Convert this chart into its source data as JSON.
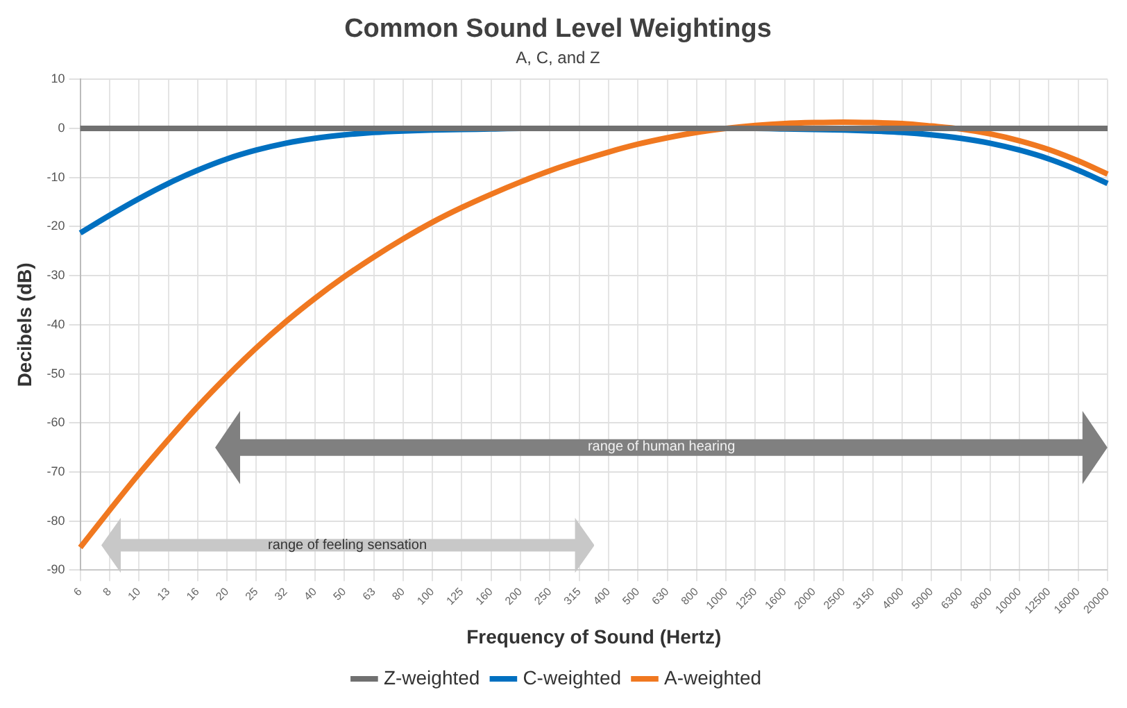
{
  "chart_data": {
    "type": "line",
    "title": "Common Sound Level Weightings",
    "subtitle": "A, C, and Z",
    "xlabel": "Frequency of Sound (Hertz)",
    "ylabel": "Decibels (dB)",
    "categories": [
      "6",
      "8",
      "10",
      "13",
      "16",
      "20",
      "25",
      "32",
      "40",
      "50",
      "63",
      "80",
      "100",
      "125",
      "160",
      "200",
      "250",
      "315",
      "400",
      "500",
      "630",
      "800",
      "1000",
      "1250",
      "1600",
      "2000",
      "2500",
      "3150",
      "4000",
      "5000",
      "6300",
      "8000",
      "10000",
      "12500",
      "16000",
      "20000"
    ],
    "series": [
      {
        "name": "Z-weighted",
        "color": "#707070",
        "values": [
          0,
          0,
          0,
          0,
          0,
          0,
          0,
          0,
          0,
          0,
          0,
          0,
          0,
          0,
          0,
          0,
          0,
          0,
          0,
          0,
          0,
          0,
          0,
          0,
          0,
          0,
          0,
          0,
          0,
          0,
          0,
          0,
          0,
          0,
          0,
          0
        ]
      },
      {
        "name": "C-weighted",
        "color": "#0070c0",
        "values": [
          -21.3,
          -17.7,
          -14.3,
          -11.2,
          -8.5,
          -6.2,
          -4.4,
          -3,
          -2,
          -1.3,
          -0.8,
          -0.5,
          -0.3,
          -0.2,
          -0.1,
          0,
          0,
          0,
          0,
          0,
          0,
          0,
          0,
          0,
          -0.1,
          -0.2,
          -0.3,
          -0.5,
          -0.8,
          -1.3,
          -2,
          -3,
          -4.4,
          -6.2,
          -8.5,
          -11.2
        ]
      },
      {
        "name": "A-weighted",
        "color": "#f07820",
        "values": [
          -85.4,
          -77.8,
          -70.4,
          -63.4,
          -56.7,
          -50.5,
          -44.7,
          -39.4,
          -34.6,
          -30.2,
          -26.2,
          -22.5,
          -19.1,
          -16.1,
          -13.4,
          -10.9,
          -8.6,
          -6.6,
          -4.8,
          -3.2,
          -1.9,
          -0.8,
          0,
          0.6,
          1,
          1.2,
          1.3,
          1.2,
          1,
          0.5,
          -0.1,
          -1.1,
          -2.5,
          -4.3,
          -6.6,
          -9.3
        ]
      }
    ],
    "ylim": [
      -90,
      10
    ],
    "yticks": [
      -90,
      -80,
      -70,
      -60,
      -50,
      -40,
      -30,
      -20,
      -10,
      0,
      10
    ],
    "grid": true,
    "legend": "bottom",
    "marker": "none",
    "line_style": "solid",
    "annotations": [
      "range of human hearing",
      "range of feeling sensation"
    ]
  }
}
